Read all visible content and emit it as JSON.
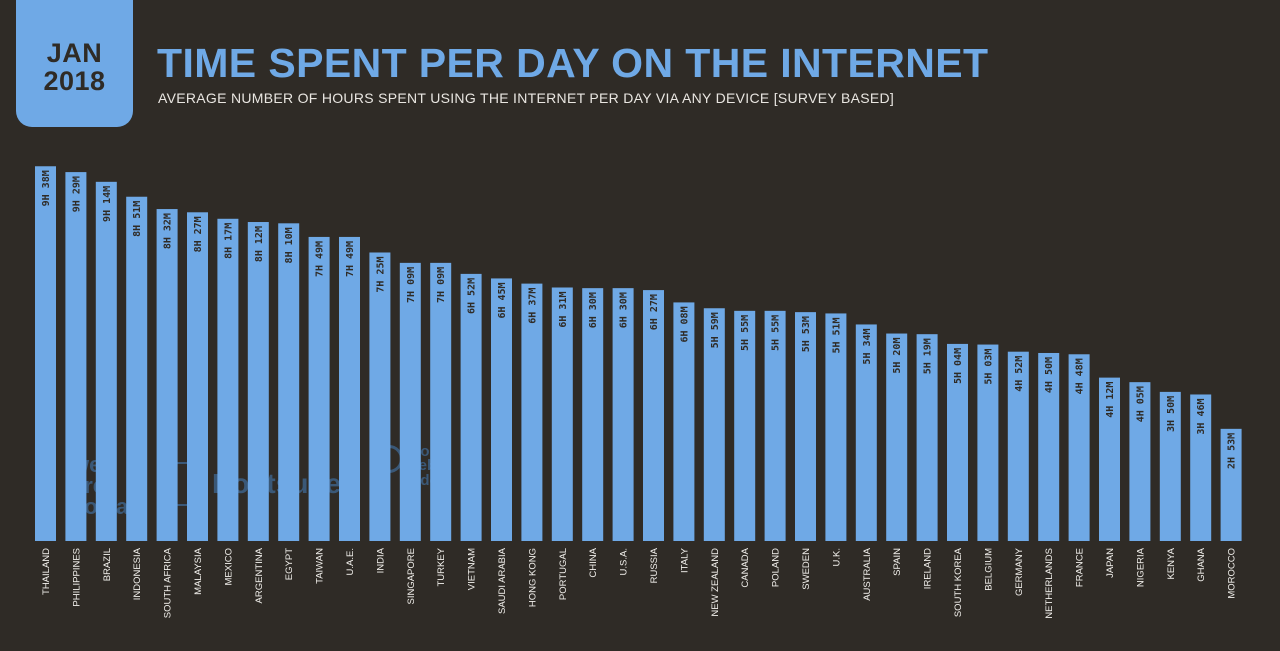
{
  "badge": {
    "month": "JAN",
    "year": "2018"
  },
  "header": {
    "title": "TIME SPENT PER DAY ON THE INTERNET",
    "subtitle": "AVERAGE NUMBER OF HOURS SPENT USING THE INTERNET PER DAY VIA ANY DEVICE [SURVEY BASED]"
  },
  "watermarks": {
    "we_are_social": [
      "we",
      "are",
      "social"
    ],
    "hootsuite": "Hootsuite",
    "global_web_index": [
      "global",
      "web",
      "index"
    ]
  },
  "colors": {
    "background": "#2f2b26",
    "accent": "#6fa9e6",
    "text": "#f2f0ec"
  },
  "chart_data": {
    "type": "bar",
    "orientation": "vertical",
    "sorted": "descending",
    "categories": [
      "THAILAND",
      "PHILIPPINES",
      "BRAZIL",
      "INDONESIA",
      "SOUTH AFRICA",
      "MALAYSIA",
      "MEXICO",
      "ARGENTINA",
      "EGYPT",
      "TAIWAN",
      "U.A.E.",
      "INDIA",
      "SINGAPORE",
      "TURKEY",
      "VIETNAM",
      "SAUDI ARABIA",
      "HONG KONG",
      "PORTUGAL",
      "CHINA",
      "U.S.A.",
      "RUSSIA",
      "ITALY",
      "NEW ZEALAND",
      "CANADA",
      "POLAND",
      "SWEDEN",
      "U.K.",
      "AUSTRALIA",
      "SPAIN",
      "IRELAND",
      "SOUTH KOREA",
      "BELGIUM",
      "GERMANY",
      "NETHERLANDS",
      "FRANCE",
      "JAPAN",
      "NIGERIA",
      "KENYA",
      "GHANA",
      "MOROCCO"
    ],
    "values": [
      578,
      569,
      554,
      531,
      512,
      507,
      497,
      492,
      490,
      469,
      469,
      445,
      429,
      429,
      412,
      405,
      397,
      391,
      390,
      390,
      387,
      368,
      359,
      355,
      355,
      353,
      351,
      334,
      320,
      319,
      304,
      303,
      292,
      290,
      288,
      252,
      245,
      230,
      226,
      173
    ],
    "value_labels": [
      "9H 38M",
      "9H 29M",
      "9H 14M",
      "8H 51M",
      "8H 32M",
      "8H 27M",
      "8H 17M",
      "8H 12M",
      "8H 10M",
      "7H 49M",
      "7H 49M",
      "7H 25M",
      "7H 09M",
      "7H 09M",
      "6H 52M",
      "6H 45M",
      "6H 37M",
      "6H 31M",
      "6H 30M",
      "6H 30M",
      "6H 27M",
      "6H 08M",
      "5H 59M",
      "5H 55M",
      "5H 55M",
      "5H 53M",
      "5H 51M",
      "5H 34M",
      "5H 20M",
      "5H 19M",
      "5H 04M",
      "5H 03M",
      "4H 52M",
      "4H 50M",
      "4H 48M",
      "4H 12M",
      "4H 05M",
      "3H 50M",
      "3H 46M",
      "2H 53M"
    ],
    "value_unit": "minutes",
    "ylim": [
      0,
      600
    ],
    "grid": false,
    "legend": "none",
    "bar_color": "#6fa9e6"
  }
}
